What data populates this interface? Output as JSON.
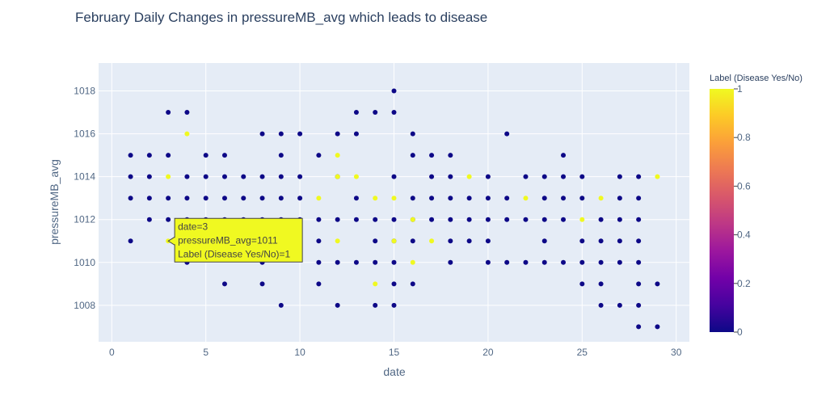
{
  "chart_data": {
    "type": "scatter",
    "title": "February Daily Changes in pressureMB_avg which leads to disease",
    "xlabel": "date",
    "ylabel": "pressureMB_avg",
    "xlim": [
      -0.7,
      30.7
    ],
    "ylim": [
      1006.3,
      1019.3
    ],
    "x_ticks": [
      0,
      5,
      10,
      15,
      20,
      25,
      30
    ],
    "y_ticks": [
      1008,
      1010,
      1012,
      1014,
      1016,
      1018
    ],
    "x_tick_labels": [
      "0",
      "5",
      "10",
      "15",
      "20",
      "25",
      "30"
    ],
    "y_tick_labels": [
      "1008",
      "1010",
      "1012",
      "1014",
      "1016",
      "1018"
    ],
    "grid": true,
    "colorbar": {
      "title": "Label (Disease Yes/No)",
      "ticks": [
        0,
        0.2,
        0.4,
        0.6,
        0.8,
        1
      ],
      "tick_labels": [
        "0",
        "0.2",
        "0.4",
        "0.6",
        "0.8",
        "1"
      ],
      "low_color": "#0d0887",
      "high_color": "#f0f921"
    },
    "series": [
      {
        "label": 0,
        "color": "#0d0887",
        "points": [
          [
            1,
            1015
          ],
          [
            1,
            1014
          ],
          [
            1,
            1013
          ],
          [
            1,
            1011
          ],
          [
            2,
            1015
          ],
          [
            2,
            1014
          ],
          [
            2,
            1013
          ],
          [
            2,
            1012
          ],
          [
            3,
            1017
          ],
          [
            3,
            1015
          ],
          [
            3,
            1013
          ],
          [
            3,
            1012
          ],
          [
            4,
            1017
          ],
          [
            4,
            1014
          ],
          [
            4,
            1013
          ],
          [
            4,
            1012
          ],
          [
            4,
            1011
          ],
          [
            4,
            1010
          ],
          [
            5,
            1015
          ],
          [
            5,
            1014
          ],
          [
            5,
            1013
          ],
          [
            5,
            1012
          ],
          [
            6,
            1015
          ],
          [
            6,
            1014
          ],
          [
            6,
            1013
          ],
          [
            6,
            1012
          ],
          [
            6,
            1011
          ],
          [
            6,
            1009
          ],
          [
            7,
            1014
          ],
          [
            7,
            1013
          ],
          [
            7,
            1012
          ],
          [
            7,
            1011
          ],
          [
            8,
            1016
          ],
          [
            8,
            1014
          ],
          [
            8,
            1013
          ],
          [
            8,
            1012
          ],
          [
            8,
            1010
          ],
          [
            8,
            1009
          ],
          [
            9,
            1016
          ],
          [
            9,
            1015
          ],
          [
            9,
            1014
          ],
          [
            9,
            1013
          ],
          [
            9,
            1012
          ],
          [
            9,
            1008
          ],
          [
            10,
            1016
          ],
          [
            10,
            1014
          ],
          [
            10,
            1013
          ],
          [
            10,
            1012
          ],
          [
            11,
            1015
          ],
          [
            11,
            1012
          ],
          [
            11,
            1011
          ],
          [
            11,
            1010
          ],
          [
            11,
            1009
          ],
          [
            12,
            1016
          ],
          [
            12,
            1014
          ],
          [
            12,
            1012
          ],
          [
            12,
            1010
          ],
          [
            12,
            1008
          ],
          [
            13,
            1017
          ],
          [
            13,
            1016
          ],
          [
            13,
            1013
          ],
          [
            13,
            1012
          ],
          [
            13,
            1010
          ],
          [
            14,
            1017
          ],
          [
            14,
            1012
          ],
          [
            14,
            1011
          ],
          [
            14,
            1010
          ],
          [
            14,
            1008
          ],
          [
            15,
            1018
          ],
          [
            15,
            1017
          ],
          [
            15,
            1014
          ],
          [
            15,
            1012
          ],
          [
            15,
            1011
          ],
          [
            15,
            1010
          ],
          [
            15,
            1009
          ],
          [
            15,
            1008
          ],
          [
            16,
            1016
          ],
          [
            16,
            1015
          ],
          [
            16,
            1013
          ],
          [
            16,
            1012
          ],
          [
            16,
            1011
          ],
          [
            16,
            1009
          ],
          [
            17,
            1015
          ],
          [
            17,
            1014
          ],
          [
            17,
            1013
          ],
          [
            17,
            1012
          ],
          [
            18,
            1015
          ],
          [
            18,
            1014
          ],
          [
            18,
            1013
          ],
          [
            18,
            1012
          ],
          [
            18,
            1011
          ],
          [
            18,
            1010
          ],
          [
            19,
            1013
          ],
          [
            19,
            1012
          ],
          [
            19,
            1011
          ],
          [
            20,
            1014
          ],
          [
            20,
            1013
          ],
          [
            20,
            1012
          ],
          [
            20,
            1011
          ],
          [
            20,
            1010
          ],
          [
            21,
            1016
          ],
          [
            21,
            1013
          ],
          [
            21,
            1012
          ],
          [
            21,
            1010
          ],
          [
            22,
            1014
          ],
          [
            22,
            1012
          ],
          [
            22,
            1010
          ],
          [
            23,
            1014
          ],
          [
            23,
            1013
          ],
          [
            23,
            1012
          ],
          [
            23,
            1011
          ],
          [
            23,
            1010
          ],
          [
            24,
            1015
          ],
          [
            24,
            1014
          ],
          [
            24,
            1013
          ],
          [
            24,
            1012
          ],
          [
            24,
            1010
          ],
          [
            25,
            1014
          ],
          [
            25,
            1013
          ],
          [
            25,
            1011
          ],
          [
            25,
            1010
          ],
          [
            25,
            1009
          ],
          [
            26,
            1012
          ],
          [
            26,
            1011
          ],
          [
            26,
            1010
          ],
          [
            26,
            1009
          ],
          [
            26,
            1008
          ],
          [
            27,
            1014
          ],
          [
            27,
            1013
          ],
          [
            27,
            1012
          ],
          [
            27,
            1011
          ],
          [
            27,
            1010
          ],
          [
            27,
            1008
          ],
          [
            28,
            1014
          ],
          [
            28,
            1013
          ],
          [
            28,
            1012
          ],
          [
            28,
            1011
          ],
          [
            28,
            1010
          ],
          [
            28,
            1009
          ],
          [
            28,
            1008
          ],
          [
            28,
            1007
          ],
          [
            29,
            1009
          ],
          [
            29,
            1007
          ]
        ]
      },
      {
        "label": 1,
        "color": "#f0f921",
        "points": [
          [
            3,
            1014
          ],
          [
            3,
            1011
          ],
          [
            4,
            1016
          ],
          [
            11,
            1013
          ],
          [
            12,
            1015
          ],
          [
            12,
            1014
          ],
          [
            12,
            1011
          ],
          [
            13,
            1014
          ],
          [
            14,
            1013
          ],
          [
            14,
            1009
          ],
          [
            15,
            1013
          ],
          [
            15,
            1011
          ],
          [
            16,
            1012
          ],
          [
            16,
            1010
          ],
          [
            17,
            1011
          ],
          [
            19,
            1014
          ],
          [
            22,
            1013
          ],
          [
            25,
            1012
          ],
          [
            26,
            1013
          ],
          [
            29,
            1014
          ]
        ]
      }
    ],
    "hover": {
      "lines": [
        "date=3",
        "pressureMB_avg=1011",
        "Label (Disease Yes/No)=1"
      ],
      "point": [
        3,
        1011
      ]
    }
  }
}
